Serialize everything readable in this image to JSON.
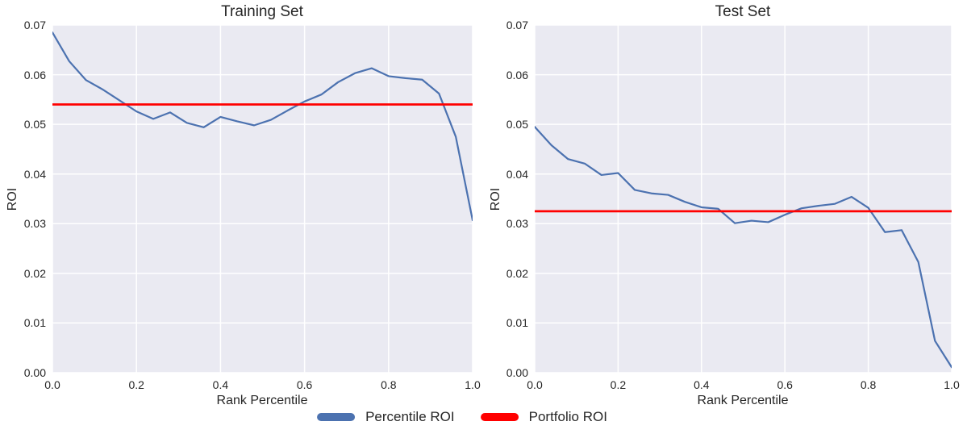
{
  "figure": {
    "background_color": "#ffffff",
    "plot_background_color": "#eaeaf2",
    "grid_color": "#ffffff",
    "text_color": "#262626"
  },
  "legend": {
    "items": [
      {
        "label": "Percentile ROI",
        "color": "#4c72b0",
        "shape": "rounded-line"
      },
      {
        "label": "Portfolio ROI",
        "color": "#ff0000",
        "shape": "rounded-line"
      }
    ],
    "position": "bottom-center"
  },
  "chart_data": [
    {
      "type": "line",
      "title": "Training Set",
      "xlabel": "Rank Percentile",
      "ylabel": "ROI",
      "xlim": [
        0,
        1
      ],
      "ylim": [
        0,
        0.07
      ],
      "grid": true,
      "xticks": [
        0.0,
        0.2,
        0.4,
        0.6,
        0.8,
        1.0
      ],
      "xtick_labels": [
        "0.0",
        "0.2",
        "0.4",
        "0.6",
        "0.8",
        "1.0"
      ],
      "yticks": [
        0.0,
        0.01,
        0.02,
        0.03,
        0.04,
        0.05,
        0.06,
        0.07
      ],
      "ytick_labels": [
        "0.00",
        "0.01",
        "0.02",
        "0.03",
        "0.04",
        "0.05",
        "0.06",
        "0.07"
      ],
      "series": [
        {
          "name": "Percentile ROI",
          "kind": "line",
          "color": "#4c72b0",
          "x": [
            0.0,
            0.04,
            0.08,
            0.12,
            0.16,
            0.2,
            0.24,
            0.28,
            0.32,
            0.36,
            0.4,
            0.44,
            0.48,
            0.52,
            0.56,
            0.6,
            0.64,
            0.68,
            0.72,
            0.76,
            0.8,
            0.84,
            0.88,
            0.92,
            0.96,
            1.0
          ],
          "y": [
            0.0685,
            0.0627,
            0.0589,
            0.057,
            0.0548,
            0.0526,
            0.0511,
            0.0524,
            0.0503,
            0.0494,
            0.0515,
            0.0506,
            0.0498,
            0.0509,
            0.0528,
            0.0546,
            0.056,
            0.0585,
            0.0603,
            0.0613,
            0.0597,
            0.0593,
            0.059,
            0.0562,
            0.0475,
            0.0307
          ]
        },
        {
          "name": "Portfolio ROI",
          "kind": "hline",
          "color": "#ff0000",
          "y": 0.054
        }
      ]
    },
    {
      "type": "line",
      "title": "Test Set",
      "xlabel": "Rank Percentile",
      "ylabel": "ROI",
      "xlim": [
        0,
        1
      ],
      "ylim": [
        0,
        0.07
      ],
      "grid": true,
      "xticks": [
        0.0,
        0.2,
        0.4,
        0.6,
        0.8,
        1.0
      ],
      "xtick_labels": [
        "0.0",
        "0.2",
        "0.4",
        "0.6",
        "0.8",
        "1.0"
      ],
      "yticks": [
        0.0,
        0.01,
        0.02,
        0.03,
        0.04,
        0.05,
        0.06,
        0.07
      ],
      "ytick_labels": [
        "0.00",
        "0.01",
        "0.02",
        "0.03",
        "0.04",
        "0.05",
        "0.06",
        "0.07"
      ],
      "series": [
        {
          "name": "Percentile ROI",
          "kind": "line",
          "color": "#4c72b0",
          "x": [
            0.0,
            0.04,
            0.08,
            0.12,
            0.16,
            0.2,
            0.24,
            0.28,
            0.32,
            0.36,
            0.4,
            0.44,
            0.48,
            0.52,
            0.56,
            0.6,
            0.64,
            0.68,
            0.72,
            0.76,
            0.8,
            0.84,
            0.88,
            0.92,
            0.96,
            1.0
          ],
          "y": [
            0.0495,
            0.0458,
            0.043,
            0.0421,
            0.0398,
            0.0402,
            0.0368,
            0.0361,
            0.0358,
            0.0344,
            0.0333,
            0.033,
            0.0301,
            0.0306,
            0.0303,
            0.0318,
            0.0331,
            0.0336,
            0.034,
            0.0354,
            0.0332,
            0.0283,
            0.0287,
            0.0223,
            0.0064,
            0.0011
          ]
        },
        {
          "name": "Portfolio ROI",
          "kind": "hline",
          "color": "#ff0000",
          "y": 0.0325
        }
      ]
    }
  ]
}
